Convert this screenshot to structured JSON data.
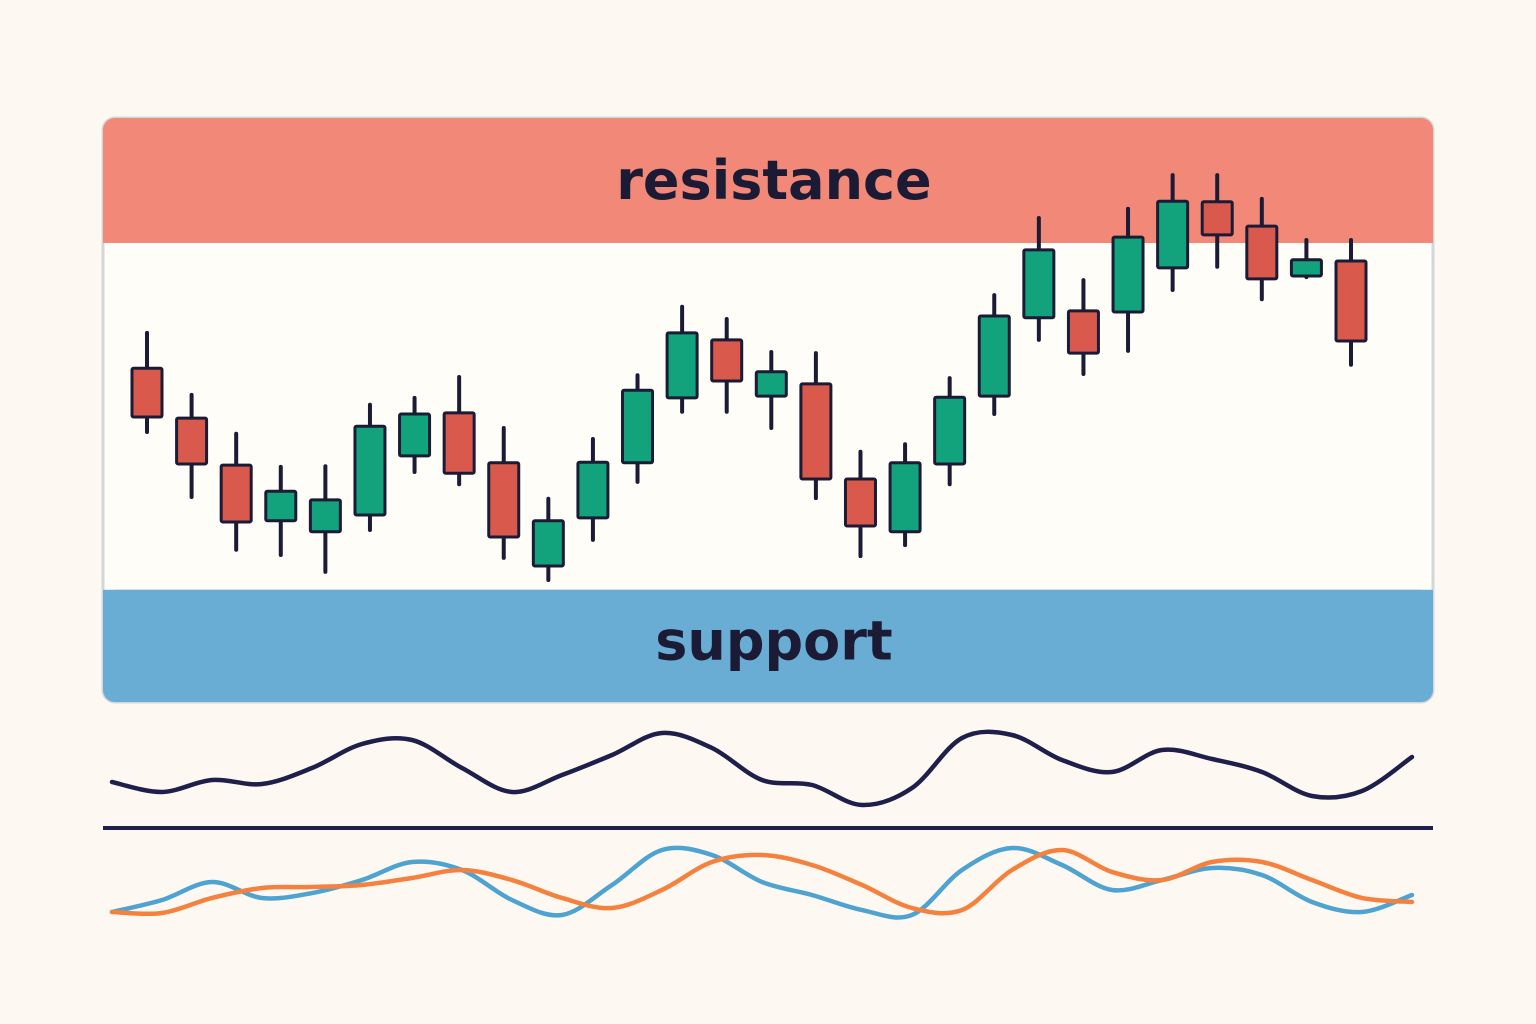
{
  "chart_data": [
    {
      "type": "candlestick",
      "ylim": [
        0,
        100
      ],
      "zones": [
        {
          "label": "resistance",
          "from": 78.8,
          "to": 100,
          "color": "#f28878"
        },
        {
          "label": "support",
          "from": 0,
          "to": 19,
          "color": "#6aadd4"
        }
      ],
      "up_color": "#13a37c",
      "down_color": "#d9594c",
      "open": [
        57.2,
        48.6,
        40.5,
        30.9,
        29.0,
        31.9,
        42.1,
        49.5,
        40.9,
        23.1,
        31.4,
        40.9,
        52.1,
        62.1,
        52.4,
        54.5,
        38.1,
        29.0,
        40.7,
        52.4,
        65.9,
        67.1,
        66.9,
        74.5,
        85.9,
        81.7,
        73.1,
        75.7
      ],
      "high": [
        63.3,
        52.6,
        45.9,
        40.2,
        40.3,
        50.9,
        52.1,
        55.7,
        46.9,
        34.7,
        45.0,
        56.0,
        67.8,
        65.7,
        60.0,
        59.8,
        42.8,
        44.1,
        55.5,
        69.8,
        83.1,
        72.4,
        84.7,
        90.5,
        90.5,
        86.4,
        79.3,
        79.3
      ],
      "low": [
        46.2,
        35.0,
        25.9,
        25.0,
        22.1,
        29.3,
        39.3,
        37.2,
        24.5,
        20.7,
        27.6,
        37.6,
        49.7,
        49.7,
        46.9,
        34.8,
        24.8,
        26.7,
        37.2,
        49.3,
        62.1,
        56.2,
        60.2,
        70.7,
        74.7,
        69.1,
        72.9,
        57.8
      ],
      "close": [
        48.8,
        40.7,
        30.7,
        36.0,
        34.5,
        47.2,
        49.3,
        39.1,
        28.1,
        30.9,
        41.0,
        53.4,
        63.3,
        55.0,
        56.6,
        38.1,
        30.0,
        40.9,
        52.2,
        66.2,
        77.6,
        59.8,
        79.8,
        86.0,
        80.2,
        72.6,
        75.9,
        61.9
      ]
    },
    {
      "type": "line",
      "ylim": [
        0,
        100
      ],
      "series": [
        {
          "color": "#1e1f4a",
          "values": [
            33,
            23,
            35,
            31,
            47,
            71,
            75,
            47,
            23,
            40,
            60,
            82,
            67,
            35,
            30,
            10,
            27,
            77,
            80,
            55,
            43,
            65,
            56,
            43,
            19,
            24,
            58
          ]
        }
      ]
    },
    {
      "type": "line",
      "ylim": [
        0,
        100
      ],
      "series": [
        {
          "color": "#4fa3d1",
          "values": [
            15.3,
            29.4,
            50.6,
            31.8,
            37.6,
            52.9,
            74.1,
            64.7,
            29.4,
            11.8,
            47.1,
            88.2,
            82.4,
            50.6,
            35.3,
            17.6,
            11.8,
            64.7,
            90.6,
            70.6,
            41.2,
            52.9,
            67.1,
            58.8,
            27.1,
            15.3,
            35.3
          ]
        },
        {
          "color": "#f4823e",
          "values": [
            15.3,
            14.1,
            31.8,
            43.5,
            44.7,
            47.1,
            55.3,
            64.7,
            52.9,
            31.8,
            20.0,
            41.2,
            74.1,
            82.4,
            70.6,
            47.1,
            20.0,
            17.6,
            64.7,
            88.2,
            62.4,
            52.9,
            74.1,
            74.1,
            52.9,
            31.8,
            27.1
          ]
        }
      ]
    }
  ]
}
